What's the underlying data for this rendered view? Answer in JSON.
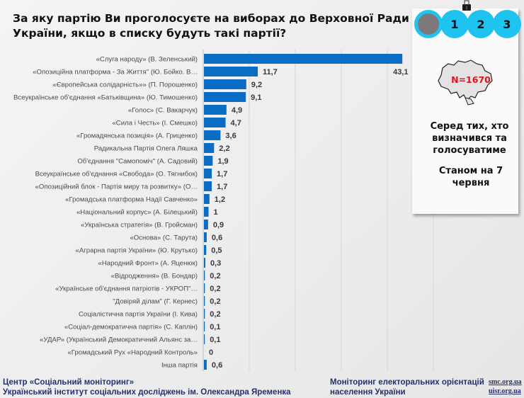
{
  "title": "За яку партію Ви проголосуєте на виборах до Верховної Ради України, якщо в списку будуть такі партії?",
  "steps": {
    "items": [
      "",
      "1",
      "2",
      "3"
    ],
    "active_index": 0
  },
  "panel": {
    "sample_label": "N=1670",
    "note": "Серед тих, хто визначився та голосуватиме",
    "date": "Станом на 7 червня"
  },
  "footer": {
    "org_line1": "Центр «Соціальний моніторинг»",
    "org_line2": "Український інститут соціальних досліджень  ім. Олександра Яременка",
    "project_line1": "Моніторинг електоральних орієнтацій",
    "project_line2": "населення України",
    "link1": "smc.org.ua",
    "link2": "uisr.org.ua"
  },
  "colors": {
    "bar": "#0a6cc4",
    "accent_circle": "#1ec3f0",
    "active_circle": "#7d7879",
    "sample_text": "#e0131d",
    "footer_text": "#26306e"
  },
  "chart_data": {
    "type": "bar",
    "orientation": "horizontal",
    "title": "За яку партію Ви проголосуєте на виборах до Верховної Ради України, якщо в списку будуть такі партії?",
    "xlabel": "",
    "ylabel": "",
    "xlim": [
      0,
      50
    ],
    "grid": true,
    "unit": "%",
    "categories": [
      "«Слуга народу» (В. Зеленський)",
      "«Опозиційна платформа - За Життя\" (Ю. Бойко. В…",
      "«Європейська солідарність»» (П. Порошенко)",
      "Всеукраїнське об'єднання «Батьківщина» (Ю. Тимошенко)",
      "«Голос» (С. Вакарчук)",
      "«Сила і Честь» (І. Смешко)",
      "«Громадянська позиція» (А. Гриценко)",
      "Радикальна Партія Олега Ляшка",
      "Об'єднання \"Самопоміч\" (А. Садовий)",
      "Всеукраїнське об'єднання «Свобода» (О. Тягнибок)",
      "«Опозиційний блок - Партія миру та розвитку» (О…",
      "«Громадська платформа Надії Савченко»",
      "«Національний корпус» (А. Білецький)",
      "«Українська стратегія» (В. Гройсман)",
      "«Основа» (С. Тарута)",
      "«Аграрна партія України» (Ю. Крутько)",
      "«Народний Фронт» (А. Яценюк)",
      "«Відродження» (В. Бондар)",
      "«Українське об'єднання патріотів - УКРОП\"…",
      "\"Довіряй ділам\" (Г. Кернес)",
      "Соціалістична партія України (І. Кива)",
      "«Соціал-демократична партія» (С. Каплін)",
      "«УДАР» (Український Демократичний Альянс за…",
      "«Громадський Рух «Народний Контроль»",
      "Інша партія"
    ],
    "values": [
      43.1,
      11.7,
      9.2,
      9.1,
      4.9,
      4.7,
      3.6,
      2.2,
      1.9,
      1.7,
      1.7,
      1.2,
      1,
      0.9,
      0.6,
      0.5,
      0.3,
      0.2,
      0.2,
      0.2,
      0.2,
      0.1,
      0.1,
      0,
      0.6
    ],
    "value_labels": [
      "43,1",
      "11,7",
      "9,2",
      "9,1",
      "4,9",
      "4,7",
      "3,6",
      "2,2",
      "1,9",
      "1,7",
      "1,7",
      "1,2",
      "1",
      "0,9",
      "0,6",
      "0,5",
      "0,3",
      "0,2",
      "0,2",
      "0,2",
      "0,2",
      "0,1",
      "0,1",
      "0",
      "0,6"
    ],
    "gridlines": [
      10,
      20,
      30,
      40,
      50
    ]
  }
}
